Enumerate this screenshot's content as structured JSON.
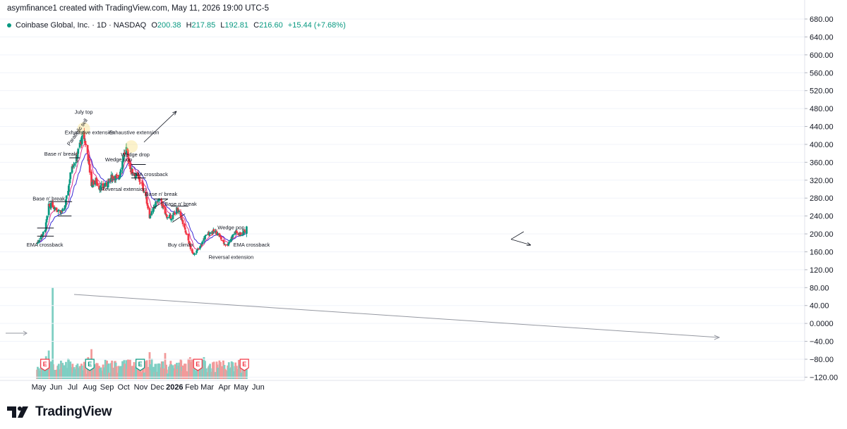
{
  "header": {
    "credit": "asymfinance1 created with TradingView.com, May 11, 2026 19:00 UTC-5"
  },
  "legend": {
    "symbol": "Coinbase Global, Inc. · 1D · NASDAQ",
    "open_label": "O",
    "open": "200.38",
    "high_label": "H",
    "high": "217.85",
    "low_label": "L",
    "low": "192.81",
    "close_label": "C",
    "close": "216.60",
    "change": "+15.44 (+7.68%)"
  },
  "brand": {
    "name": "TradingView"
  },
  "colors": {
    "up": "#089981",
    "down": "#f23645",
    "upVol": "#7fcfc3",
    "downVol": "#f29a9a",
    "ema_fast": "#e0338a",
    "ema_slow": "#3b2bd6"
  },
  "chart_data": {
    "type": "candlestick",
    "y_axis": {
      "ticks": [
        "680.00",
        "640.00",
        "600.00",
        "560.00",
        "520.00",
        "480.00",
        "440.00",
        "400.00",
        "360.00",
        "320.00",
        "280.00",
        "240.00",
        "200.00",
        "160.00",
        "120.00",
        "80.00",
        "40.00",
        "0.0000",
        "−40.00",
        "−80.00",
        "−120.00"
      ]
    },
    "x_axis": {
      "labels": [
        "May",
        "Jun",
        "Jul",
        "Aug",
        "Sep",
        "Oct",
        "Nov",
        "Dec",
        "2026",
        "Feb",
        "Mar",
        "Apr",
        "May",
        "Jun"
      ]
    },
    "price_path": [
      [
        "2025-04-28",
        180
      ],
      [
        "2025-05-05",
        196
      ],
      [
        "2025-05-12",
        205
      ],
      [
        "2025-05-19",
        262
      ],
      [
        "2025-05-26",
        265
      ],
      [
        "2025-06-02",
        255
      ],
      [
        "2025-06-09",
        250
      ],
      [
        "2025-06-16",
        252
      ],
      [
        "2025-06-23",
        300
      ],
      [
        "2025-06-30",
        355
      ],
      [
        "2025-07-07",
        365
      ],
      [
        "2025-07-14",
        400
      ],
      [
        "2025-07-21",
        420
      ],
      [
        "2025-07-28",
        380
      ],
      [
        "2025-08-04",
        310
      ],
      [
        "2025-08-11",
        320
      ],
      [
        "2025-08-18",
        305
      ],
      [
        "2025-08-25",
        305
      ],
      [
        "2025-09-01",
        310
      ],
      [
        "2025-09-08",
        325
      ],
      [
        "2025-09-15",
        330
      ],
      [
        "2025-09-22",
        320
      ],
      [
        "2025-09-29",
        370
      ],
      [
        "2025-10-06",
        390
      ],
      [
        "2025-10-13",
        345
      ],
      [
        "2025-10-20",
        335
      ],
      [
        "2025-10-27",
        325
      ],
      [
        "2025-11-03",
        310
      ],
      [
        "2025-11-10",
        285
      ],
      [
        "2025-11-17",
        240
      ],
      [
        "2025-11-24",
        255
      ],
      [
        "2025-12-01",
        275
      ],
      [
        "2025-12-08",
        270
      ],
      [
        "2025-12-15",
        245
      ],
      [
        "2025-12-22",
        235
      ],
      [
        "2025-12-29",
        240
      ],
      [
        "2026-01-05",
        255
      ],
      [
        "2026-01-12",
        240
      ],
      [
        "2026-01-19",
        210
      ],
      [
        "2026-01-26",
        185
      ],
      [
        "2026-02-02",
        155
      ],
      [
        "2026-02-09",
        160
      ],
      [
        "2026-02-16",
        170
      ],
      [
        "2026-02-23",
        190
      ],
      [
        "2026-03-02",
        200
      ],
      [
        "2026-03-09",
        205
      ],
      [
        "2026-03-16",
        205
      ],
      [
        "2026-03-23",
        195
      ],
      [
        "2026-03-30",
        180
      ],
      [
        "2026-04-06",
        175
      ],
      [
        "2026-04-13",
        190
      ],
      [
        "2026-04-20",
        205
      ],
      [
        "2026-04-27",
        200
      ],
      [
        "2026-05-04",
        200
      ],
      [
        "2026-05-11",
        216.6
      ]
    ],
    "annotations": [
      {
        "text": "EMA crossback",
        "date": "2025-05-12",
        "price": 172
      },
      {
        "text": "Base n' break",
        "date": "2025-05-19",
        "price": 275
      },
      {
        "text": "Base n' break",
        "date": "2025-06-09",
        "price": 375
      },
      {
        "text": "Parabolic sell",
        "date": "2025-07-12",
        "price": 425
      },
      {
        "text": "July top",
        "date": "2025-07-21",
        "price": 468
      },
      {
        "text": "Exhaustive extension",
        "date": "2025-08-01",
        "price": 423
      },
      {
        "text": "Wedge pop",
        "date": "2025-09-22",
        "price": 362
      },
      {
        "text": "Reversal extension",
        "date": "2025-10-01",
        "price": 296
      },
      {
        "text": "Exhaustive extension",
        "date": "2025-10-20",
        "price": 423
      },
      {
        "text": "Wedge drop",
        "date": "2025-10-22",
        "price": 373
      },
      {
        "text": "EMA crossback",
        "date": "2025-11-17",
        "price": 329
      },
      {
        "text": "Base n' break",
        "date": "2025-12-08",
        "price": 285
      },
      {
        "text": "Base n' break",
        "date": "2026-01-12",
        "price": 263
      },
      {
        "text": "Buy climax",
        "date": "2026-01-12",
        "price": 172
      },
      {
        "text": "Wedge pop",
        "date": "2026-04-13",
        "price": 210
      },
      {
        "text": "Reversal extension",
        "date": "2026-04-13",
        "price": 144
      },
      {
        "text": "EMA crossback",
        "date": "2026-05-20",
        "price": 172
      }
    ],
    "earnings_markers": [
      "2025-05-12",
      "2025-08-01",
      "2025-10-31",
      "2026-02-12",
      "2026-05-07"
    ],
    "earnings_label": "E",
    "volume_spike_indicator": "2025-05-26",
    "last_price": "216.60"
  }
}
